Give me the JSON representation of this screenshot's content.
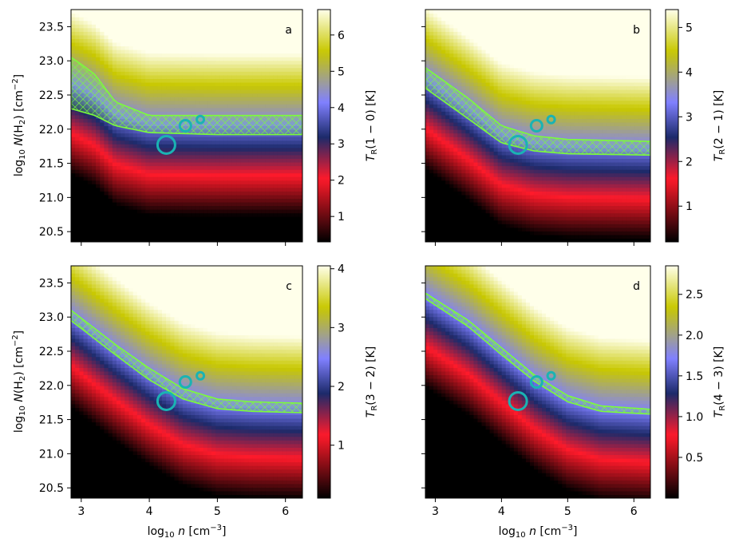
{
  "chart_data": {
    "type": "heatmap",
    "shared_axes": {
      "xlabel": "log₁₀ n [cm⁻³]",
      "ylabel": "log₁₀ N(H₂) [cm⁻²]",
      "xlim": [
        2.85,
        6.25
      ],
      "ylim": [
        20.35,
        23.75
      ],
      "xticks": [
        3,
        4,
        5,
        6
      ],
      "yticks": [
        20.5,
        21.0,
        21.5,
        22.0,
        22.5,
        23.0,
        23.5
      ],
      "xtick_labels": [
        "3",
        "4",
        "5",
        "6"
      ],
      "ytick_labels": [
        "20.5",
        "21.0",
        "21.5",
        "22.0",
        "22.5",
        "23.0",
        "23.5"
      ]
    },
    "colormap": [
      "#000000",
      "#ff1a2a",
      "#1c2a6a",
      "#8080ff",
      "#c8c800",
      "#ffffea"
    ],
    "colormap_stops": [
      0.0,
      0.27,
      0.45,
      0.6,
      0.82,
      1.0
    ],
    "band_color": "#7cfc3a",
    "marker_color": "#1ab3b3",
    "observed_points": [
      {
        "x": 4.25,
        "y": 21.77,
        "size": "large"
      },
      {
        "x": 4.53,
        "y": 22.05,
        "size": "medium"
      },
      {
        "x": 4.75,
        "y": 22.14,
        "size": "small"
      }
    ],
    "panels": [
      {
        "label": "a",
        "colorbar_label": "T_R(1 − 0) [K]",
        "cbar_range": [
          0.3,
          6.7
        ],
        "cbar_ticks": [
          1,
          2,
          3,
          4,
          5,
          6
        ],
        "cbar_tick_labels": [
          "1",
          "2",
          "3",
          "4",
          "5",
          "6"
        ],
        "band_upper": [
          [
            2.85,
            23.05
          ],
          [
            3.0,
            22.95
          ],
          [
            3.2,
            22.8
          ],
          [
            3.5,
            22.4
          ],
          [
            4.0,
            22.2
          ],
          [
            5.0,
            22.2
          ],
          [
            6.25,
            22.2
          ]
        ],
        "band_lower": [
          [
            2.85,
            22.3
          ],
          [
            3.2,
            22.2
          ],
          [
            3.5,
            22.05
          ],
          [
            4.0,
            21.95
          ],
          [
            5.0,
            21.92
          ],
          [
            6.25,
            21.92
          ]
        ]
      },
      {
        "label": "b",
        "colorbar_label": "T_R(2 − 1) [K]",
        "cbar_range": [
          0.2,
          5.4
        ],
        "cbar_ticks": [
          1,
          2,
          3,
          4,
          5
        ],
        "cbar_tick_labels": [
          "1",
          "2",
          "3",
          "4",
          "5"
        ],
        "band_upper": [
          [
            2.85,
            22.9
          ],
          [
            3.5,
            22.45
          ],
          [
            4.0,
            22.05
          ],
          [
            4.5,
            21.9
          ],
          [
            5.0,
            21.85
          ],
          [
            6.25,
            21.82
          ]
        ],
        "band_lower": [
          [
            2.85,
            22.6
          ],
          [
            3.5,
            22.15
          ],
          [
            4.0,
            21.8
          ],
          [
            4.5,
            21.68
          ],
          [
            5.0,
            21.64
          ],
          [
            6.25,
            21.62
          ]
        ]
      },
      {
        "label": "c",
        "colorbar_label": "T_R(3 − 2) [K]",
        "cbar_range": [
          0.1,
          4.05
        ],
        "cbar_ticks": [
          1,
          2,
          3,
          4
        ],
        "cbar_tick_labels": [
          "1",
          "2",
          "3",
          "4"
        ],
        "band_upper": [
          [
            2.85,
            23.1
          ],
          [
            3.5,
            22.6
          ],
          [
            4.0,
            22.25
          ],
          [
            4.5,
            21.95
          ],
          [
            5.0,
            21.8
          ],
          [
            5.5,
            21.76
          ],
          [
            6.25,
            21.74
          ]
        ],
        "band_lower": [
          [
            2.85,
            22.95
          ],
          [
            3.5,
            22.45
          ],
          [
            4.0,
            22.08
          ],
          [
            4.5,
            21.8
          ],
          [
            5.0,
            21.66
          ],
          [
            5.5,
            21.62
          ],
          [
            6.25,
            21.6
          ]
        ]
      },
      {
        "label": "d",
        "colorbar_label": "T_R(4 − 3) [K]",
        "cbar_range": [
          0.0,
          2.85
        ],
        "cbar_ticks": [
          0.5,
          1.0,
          1.5,
          2.0,
          2.5
        ],
        "cbar_tick_labels": [
          "0.5",
          "1.0",
          "1.5",
          "2.0",
          "2.5"
        ],
        "band_upper": [
          [
            2.85,
            23.35
          ],
          [
            3.5,
            22.95
          ],
          [
            4.0,
            22.55
          ],
          [
            4.5,
            22.15
          ],
          [
            5.0,
            21.85
          ],
          [
            5.5,
            21.7
          ],
          [
            6.25,
            21.65
          ]
        ],
        "band_lower": [
          [
            2.85,
            23.27
          ],
          [
            3.5,
            22.86
          ],
          [
            4.0,
            22.45
          ],
          [
            4.5,
            22.06
          ],
          [
            5.0,
            21.76
          ],
          [
            5.5,
            21.62
          ],
          [
            6.25,
            21.58
          ]
        ]
      }
    ]
  }
}
